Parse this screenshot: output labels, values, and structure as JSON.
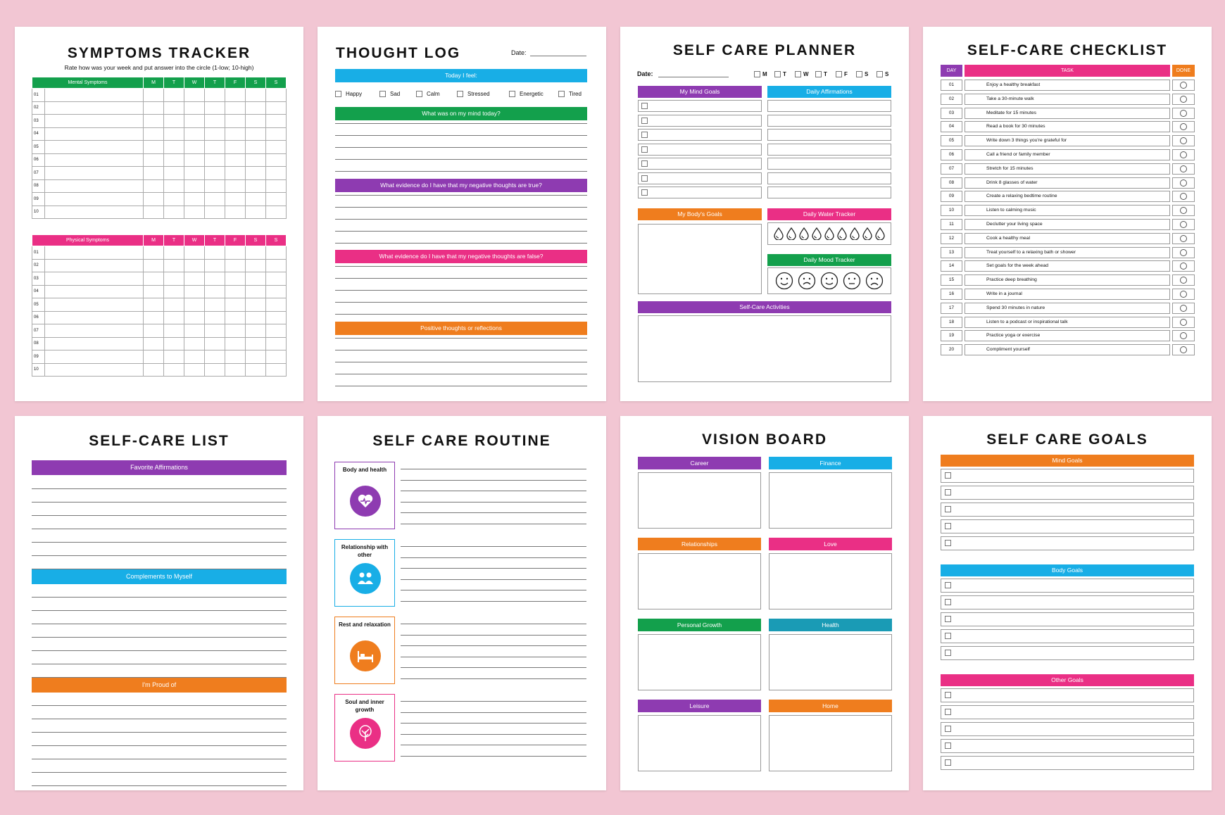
{
  "colors": {
    "bg": "#f2c6d3",
    "green": "#13a04c",
    "pink": "#ea2f85",
    "blue": "#18aee6",
    "purple": "#8e3bb1",
    "orange": "#ef7d1e",
    "teal": "#1a9bb5"
  },
  "symptoms": {
    "title": "SYMPTOMS TRACKER",
    "subtitle": "Rate how was your week and put answer into the circle (1-low; 10-high)",
    "mental_label": "Mental Symptoms",
    "physical_label": "Physical Symptoms",
    "days": [
      "M",
      "T",
      "W",
      "T",
      "F",
      "S",
      "S"
    ],
    "rows": [
      "01",
      "02",
      "03",
      "04",
      "05",
      "06",
      "07",
      "08",
      "09",
      "10"
    ]
  },
  "thought": {
    "title": "THOUGHT LOG",
    "date_label": "Date:",
    "feel_label": "Today I feel:",
    "feelings": [
      "Happy",
      "Sad",
      "Calm",
      "Stressed",
      "Energetic",
      "Tired"
    ],
    "q1": "What was on my mind today?",
    "q2": "What evidence do I have that my negative thoughts are true?",
    "q3": "What evidence do I have that my negative thoughts are false?",
    "q4": "Positive thoughts or reflections"
  },
  "planner": {
    "title": "SELF CARE PLANNER",
    "date_label": "Date:",
    "days": [
      "M",
      "T",
      "W",
      "T",
      "F",
      "S",
      "S"
    ],
    "mind": "My Mind Goals",
    "affirm": "Daily Affirmations",
    "body": "My Body's Goals",
    "water": "Daily Water Tracker",
    "mood": "Daily Mood Tracker",
    "activities": "Self-Care Activities"
  },
  "checklist": {
    "title": "SELF-CARE CHECKLIST",
    "h_day": "DAY",
    "h_task": "TASK",
    "h_done": "DONE",
    "rows": [
      [
        "01",
        "Enjoy a healthy breakfast"
      ],
      [
        "02",
        "Take a 30-minute walk"
      ],
      [
        "03",
        "Meditate for 15 minutes"
      ],
      [
        "04",
        "Read a book for 30 minutes"
      ],
      [
        "05",
        "Write down 3 things you're grateful for"
      ],
      [
        "06",
        "Call a friend or family member"
      ],
      [
        "07",
        "Stretch for 15 minutes"
      ],
      [
        "08",
        "Drink 8 glasses of water"
      ],
      [
        "09",
        "Create a relaxing bedtime routine"
      ],
      [
        "10",
        "Listen to calming music"
      ],
      [
        "11",
        "Declutter your living space"
      ],
      [
        "12",
        "Cook a healthy meal"
      ],
      [
        "13",
        "Treat yourself to a relaxing bath or shower"
      ],
      [
        "14",
        "Set goals for the week ahead"
      ],
      [
        "15",
        "Practice deep breathing"
      ],
      [
        "16",
        "Write in a journal"
      ],
      [
        "17",
        "Spend 30 minutes in nature"
      ],
      [
        "18",
        "Listen to a podcast or inspirational talk"
      ],
      [
        "19",
        "Practice yoga or exercise"
      ],
      [
        "20",
        "Compliment yourself"
      ]
    ]
  },
  "list": {
    "title": "SELF-CARE LIST",
    "s1": "Favorite Affirmations",
    "s2": "Complements to Myself",
    "s3": "I'm Proud of"
  },
  "routine": {
    "title": "SELF CARE ROUTINE",
    "items": [
      "Body and health",
      "Relationship with other",
      "Rest and relaxation",
      "Soul and inner growth"
    ]
  },
  "vision": {
    "title": "VISION BOARD",
    "cells": [
      "Career",
      "Finance",
      "Relationships",
      "Love",
      "Personal Growth",
      "Health",
      "Leisure",
      "Home"
    ]
  },
  "goals": {
    "title": "SELF CARE GOALS",
    "g1": "Mind Goals",
    "g2": "Body Goals",
    "g3": "Other Goals"
  }
}
